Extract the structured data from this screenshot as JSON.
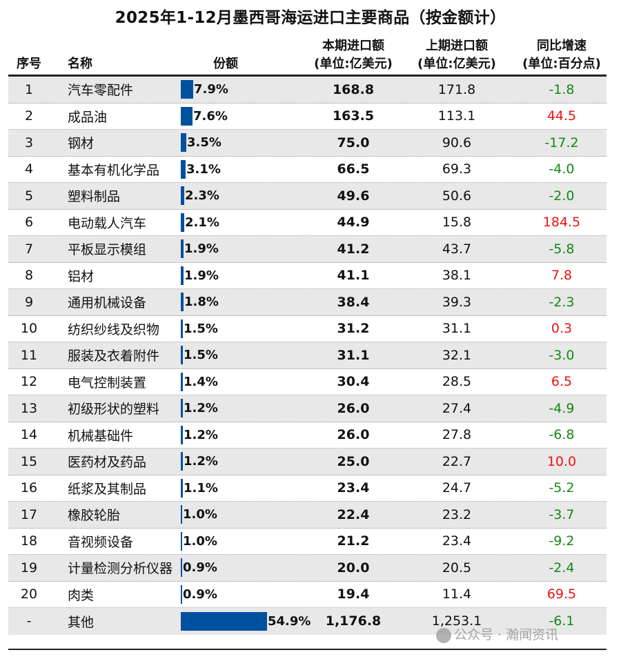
{
  "title": "2025年1-12月墨西哥海运进口主要商品（按金额计）",
  "headers": {
    "index": "序号",
    "name": "名称",
    "share": "份额",
    "current_line1": "本期进口额",
    "current_line2": "(单位:亿美元)",
    "previous_line1": "上期进口额",
    "previous_line2": "(单位:亿美元)",
    "yoy_line1": "同比增速",
    "yoy_line2": "(单位:百分点)"
  },
  "colors": {
    "bar": "#0050a0",
    "positive": "#ee1111",
    "negative": "#118811",
    "row_alt": "#e8e8e8"
  },
  "rows": [
    {
      "idx": "1",
      "name": "汽车零配件",
      "share": "7.9%",
      "share_val": 7.9,
      "cur": "168.8",
      "prev": "171.8",
      "yoy": "-1.8"
    },
    {
      "idx": "2",
      "name": "成品油",
      "share": "7.6%",
      "share_val": 7.6,
      "cur": "163.5",
      "prev": "113.1",
      "yoy": "44.5"
    },
    {
      "idx": "3",
      "name": "钢材",
      "share": "3.5%",
      "share_val": 3.5,
      "cur": "75.0",
      "prev": "90.6",
      "yoy": "-17.2"
    },
    {
      "idx": "4",
      "name": "基本有机化学品",
      "share": "3.1%",
      "share_val": 3.1,
      "cur": "66.5",
      "prev": "69.3",
      "yoy": "-4.0"
    },
    {
      "idx": "5",
      "name": "塑料制品",
      "share": "2.3%",
      "share_val": 2.3,
      "cur": "49.6",
      "prev": "50.6",
      "yoy": "-2.0"
    },
    {
      "idx": "6",
      "name": "电动载人汽车",
      "share": "2.1%",
      "share_val": 2.1,
      "cur": "44.9",
      "prev": "15.8",
      "yoy": "184.5"
    },
    {
      "idx": "7",
      "name": "平板显示模组",
      "share": "1.9%",
      "share_val": 1.9,
      "cur": "41.2",
      "prev": "43.7",
      "yoy": "-5.8"
    },
    {
      "idx": "8",
      "name": "铝材",
      "share": "1.9%",
      "share_val": 1.9,
      "cur": "41.1",
      "prev": "38.1",
      "yoy": "7.8"
    },
    {
      "idx": "9",
      "name": "通用机械设备",
      "share": "1.8%",
      "share_val": 1.8,
      "cur": "38.4",
      "prev": "39.3",
      "yoy": "-2.3"
    },
    {
      "idx": "10",
      "name": "纺织纱线及织物",
      "share": "1.5%",
      "share_val": 1.5,
      "cur": "31.2",
      "prev": "31.1",
      "yoy": "0.3"
    },
    {
      "idx": "11",
      "name": "服装及衣着附件",
      "share": "1.5%",
      "share_val": 1.5,
      "cur": "31.1",
      "prev": "32.1",
      "yoy": "-3.0"
    },
    {
      "idx": "12",
      "name": "电气控制装置",
      "share": "1.4%",
      "share_val": 1.4,
      "cur": "30.4",
      "prev": "28.5",
      "yoy": "6.5"
    },
    {
      "idx": "13",
      "name": "初级形状的塑料",
      "share": "1.2%",
      "share_val": 1.2,
      "cur": "26.0",
      "prev": "27.4",
      "yoy": "-4.9"
    },
    {
      "idx": "14",
      "name": "机械基础件",
      "share": "1.2%",
      "share_val": 1.2,
      "cur": "26.0",
      "prev": "27.8",
      "yoy": "-6.8"
    },
    {
      "idx": "15",
      "name": "医药材及药品",
      "share": "1.2%",
      "share_val": 1.2,
      "cur": "25.0",
      "prev": "22.7",
      "yoy": "10.0"
    },
    {
      "idx": "16",
      "name": "纸浆及其制品",
      "share": "1.1%",
      "share_val": 1.1,
      "cur": "23.4",
      "prev": "24.7",
      "yoy": "-5.2"
    },
    {
      "idx": "17",
      "name": "橡胶轮胎",
      "share": "1.0%",
      "share_val": 1.0,
      "cur": "22.4",
      "prev": "23.2",
      "yoy": "-3.7"
    },
    {
      "idx": "18",
      "name": "音视频设备",
      "share": "1.0%",
      "share_val": 1.0,
      "cur": "21.2",
      "prev": "23.4",
      "yoy": "-9.2"
    },
    {
      "idx": "19",
      "name": "计量检测分析仪器",
      "share": "0.9%",
      "share_val": 0.9,
      "cur": "20.0",
      "prev": "20.5",
      "yoy": "-2.4"
    },
    {
      "idx": "20",
      "name": "肉类",
      "share": "0.9%",
      "share_val": 0.9,
      "cur": "19.4",
      "prev": "11.4",
      "yoy": "69.5"
    },
    {
      "idx": "-",
      "name": "其他",
      "share": "54.9%",
      "share_val": 54.9,
      "cur": "1,176.8",
      "prev": "1,253.1",
      "yoy": "-6.1"
    }
  ],
  "watermark": "公众号 · 瀚闻资讯",
  "chart_data": {
    "type": "table",
    "title": "2025年1-12月墨西哥海运进口主要商品（按金额计）",
    "columns": [
      "序号",
      "名称",
      "份额",
      "本期进口额(单位:亿美元)",
      "上期进口额(单位:亿美元)",
      "同比增速(单位:百分点)"
    ],
    "categories": [
      "汽车零配件",
      "成品油",
      "钢材",
      "基本有机化学品",
      "塑料制品",
      "电动载人汽车",
      "平板显示模组",
      "铝材",
      "通用机械设备",
      "纺织纱线及织物",
      "服装及衣着附件",
      "电气控制装置",
      "初级形状的塑料",
      "机械基础件",
      "医药材及药品",
      "纸浆及其制品",
      "橡胶轮胎",
      "音视频设备",
      "计量检测分析仪器",
      "肉类",
      "其他"
    ],
    "series": [
      {
        "name": "份额(%)",
        "values": [
          7.9,
          7.6,
          3.5,
          3.1,
          2.3,
          2.1,
          1.9,
          1.9,
          1.8,
          1.5,
          1.5,
          1.4,
          1.2,
          1.2,
          1.2,
          1.1,
          1.0,
          1.0,
          0.9,
          0.9,
          54.9
        ]
      },
      {
        "name": "本期进口额(亿美元)",
        "values": [
          168.8,
          163.5,
          75.0,
          66.5,
          49.6,
          44.9,
          41.2,
          41.1,
          38.4,
          31.2,
          31.1,
          30.4,
          26.0,
          26.0,
          25.0,
          23.4,
          22.4,
          21.2,
          20.0,
          19.4,
          1176.8
        ]
      },
      {
        "name": "上期进口额(亿美元)",
        "values": [
          171.8,
          113.1,
          90.6,
          69.3,
          50.6,
          15.8,
          43.7,
          38.1,
          39.3,
          31.1,
          32.1,
          28.5,
          27.4,
          27.8,
          22.7,
          24.7,
          23.2,
          23.4,
          20.5,
          11.4,
          1253.1
        ]
      },
      {
        "name": "同比增速(百分点)",
        "values": [
          -1.8,
          44.5,
          -17.2,
          -4.0,
          -2.0,
          184.5,
          -5.8,
          7.8,
          -2.3,
          0.3,
          -3.0,
          6.5,
          -4.9,
          -6.8,
          10.0,
          -5.2,
          -3.7,
          -9.2,
          -2.4,
          69.5,
          -6.1
        ]
      }
    ]
  }
}
